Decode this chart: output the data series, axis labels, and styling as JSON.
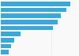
{
  "values": [
    682,
    647,
    590,
    555,
    510,
    195,
    130,
    100,
    80
  ],
  "bar_color": "#3aa8d8",
  "background_color": "#f9f9f9",
  "grid_color": "#e0e0e0",
  "xlim": [
    0,
    760
  ]
}
